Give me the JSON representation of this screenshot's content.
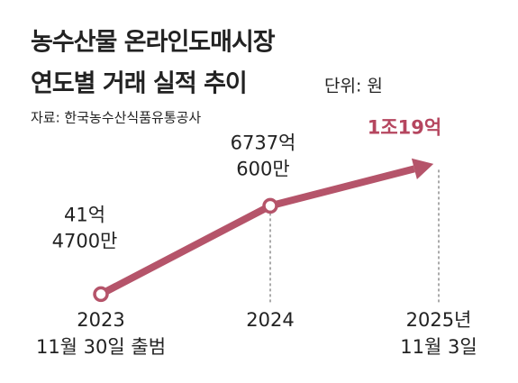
{
  "chart_data": {
    "type": "line",
    "title": [
      "농수산물 온라인도매시장",
      "연도별 거래 실적 추이"
    ],
    "unit": "단위: 원",
    "source": "자료: 한국농수산식품유통공사",
    "categories": [
      [
        "2023",
        "11월 30일 출범"
      ],
      [
        "2024"
      ],
      [
        "2025년",
        "11월 3일"
      ]
    ],
    "values": [
      4147000000,
      673706000000,
      1001900000000
    ],
    "value_labels": [
      [
        "41억",
        "4700만"
      ],
      [
        "6737억",
        "600만"
      ],
      [
        "1조19억"
      ]
    ],
    "color": "#b5546a",
    "highlight_color": "#b5465f",
    "ylim": [
      0,
      1100000000000
    ]
  }
}
